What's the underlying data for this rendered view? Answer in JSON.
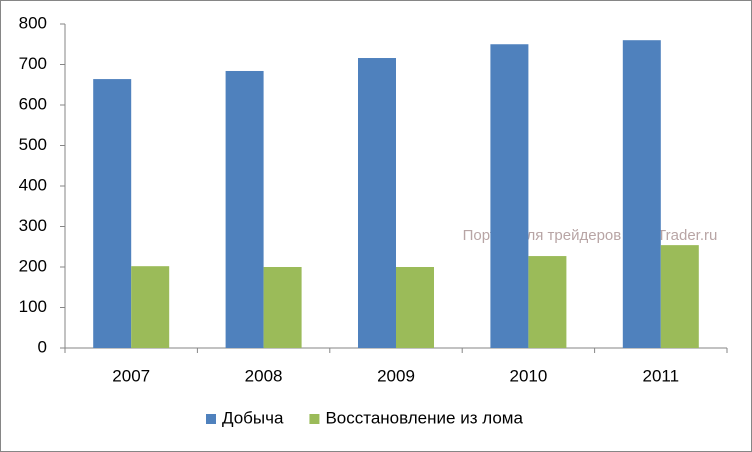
{
  "chart_data": {
    "type": "bar",
    "categories": [
      "2007",
      "2008",
      "2009",
      "2010",
      "2011"
    ],
    "series": [
      {
        "name": "Добыча",
        "color": "#4f81bd",
        "values": [
          664,
          684,
          716,
          750,
          760
        ]
      },
      {
        "name": "Восстановление из лома",
        "color": "#9bbb59",
        "values": [
          202,
          200,
          200,
          227,
          254
        ]
      }
    ],
    "ylim": [
      0,
      800
    ],
    "yticks": [
      0,
      100,
      200,
      300,
      400,
      500,
      600,
      700,
      800
    ],
    "grid": false,
    "legend": "bottom",
    "annotation": "Портал для трейдеров - ForTrader.ru"
  }
}
